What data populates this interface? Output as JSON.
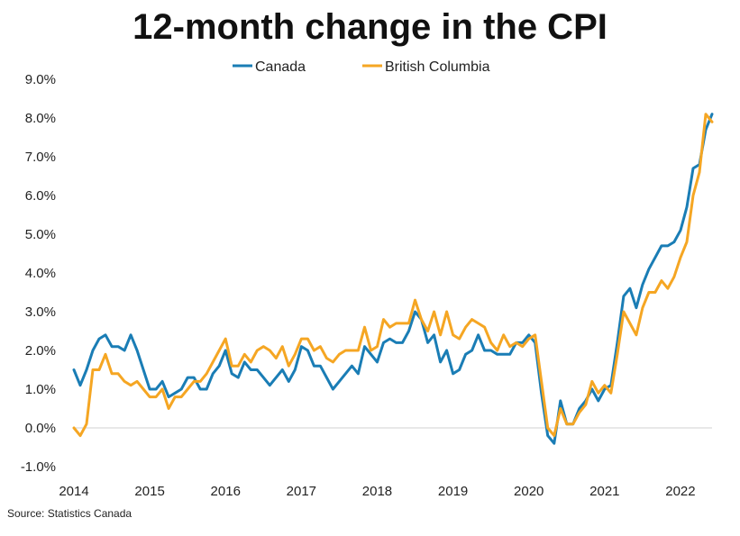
{
  "chart_data": {
    "type": "line",
    "title": "12-month change in the CPI",
    "xlabel": "",
    "ylabel": "",
    "x_tick_labels": [
      "2014",
      "2015",
      "2016",
      "2017",
      "2018",
      "2019",
      "2020",
      "2021",
      "2022"
    ],
    "y_tick_labels": [
      "-1.0%",
      "0.0%",
      "1.0%",
      "2.0%",
      "3.0%",
      "4.0%",
      "5.0%",
      "6.0%",
      "7.0%",
      "8.0%",
      "9.0%"
    ],
    "ylim": [
      -1.0,
      9.0
    ],
    "xlim": [
      "2014-01",
      "2022-06"
    ],
    "grid": false,
    "legend_position": "top-center",
    "x_start": "2014-01",
    "x_step": "month",
    "series": [
      {
        "name": "Canada",
        "color": "#1a7db5",
        "values": [
          1.5,
          1.1,
          1.5,
          2.0,
          2.3,
          2.4,
          2.1,
          2.1,
          2.0,
          2.4,
          2.0,
          1.5,
          1.0,
          1.0,
          1.2,
          0.8,
          0.9,
          1.0,
          1.3,
          1.3,
          1.0,
          1.0,
          1.4,
          1.6,
          2.0,
          1.4,
          1.3,
          1.7,
          1.5,
          1.5,
          1.3,
          1.1,
          1.3,
          1.5,
          1.2,
          1.5,
          2.1,
          2.0,
          1.6,
          1.6,
          1.3,
          1.0,
          1.2,
          1.4,
          1.6,
          1.4,
          2.1,
          1.9,
          1.7,
          2.2,
          2.3,
          2.2,
          2.2,
          2.5,
          3.0,
          2.8,
          2.2,
          2.4,
          1.7,
          2.0,
          1.4,
          1.5,
          1.9,
          2.0,
          2.4,
          2.0,
          2.0,
          1.9,
          1.9,
          1.9,
          2.2,
          2.2,
          2.4,
          2.2,
          0.9,
          -0.2,
          -0.4,
          0.7,
          0.1,
          0.1,
          0.5,
          0.7,
          1.0,
          0.7,
          1.0,
          1.1,
          2.2,
          3.4,
          3.6,
          3.1,
          3.7,
          4.1,
          4.4,
          4.7,
          4.7,
          4.8,
          5.1,
          5.7,
          6.7,
          6.8,
          7.7,
          8.1
        ]
      },
      {
        "name": "British Columbia",
        "color": "#f5a623",
        "values": [
          0.0,
          -0.2,
          0.1,
          1.5,
          1.5,
          1.9,
          1.4,
          1.4,
          1.2,
          1.1,
          1.2,
          1.0,
          0.8,
          0.8,
          1.0,
          0.5,
          0.8,
          0.8,
          1.0,
          1.2,
          1.2,
          1.4,
          1.7,
          2.0,
          2.3,
          1.6,
          1.6,
          1.9,
          1.7,
          2.0,
          2.1,
          2.0,
          1.8,
          2.1,
          1.6,
          1.9,
          2.3,
          2.3,
          2.0,
          2.1,
          1.8,
          1.7,
          1.9,
          2.0,
          2.0,
          2.0,
          2.6,
          2.0,
          2.1,
          2.8,
          2.6,
          2.7,
          2.7,
          2.7,
          3.3,
          2.8,
          2.5,
          3.0,
          2.4,
          3.0,
          2.4,
          2.3,
          2.6,
          2.8,
          2.7,
          2.6,
          2.2,
          2.0,
          2.4,
          2.1,
          2.2,
          2.1,
          2.3,
          2.4,
          1.2,
          0.0,
          -0.2,
          0.5,
          0.1,
          0.1,
          0.4,
          0.6,
          1.2,
          0.9,
          1.1,
          0.9,
          1.9,
          3.0,
          2.7,
          2.4,
          3.1,
          3.5,
          3.5,
          3.8,
          3.6,
          3.9,
          4.4,
          4.8,
          6.0,
          6.6,
          8.1,
          7.9
        ]
      }
    ],
    "source": "Source: Statistics Canada"
  }
}
